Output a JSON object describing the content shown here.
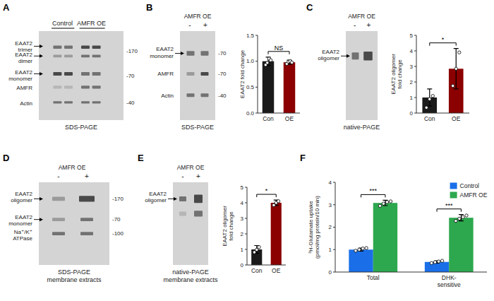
{
  "chart_data": [
    {
      "type": "gel",
      "title": "A",
      "annotations": [
        "EAAT2\ntrimer",
        "EAAT2\ndimer",
        "EAAT2\nmonomer",
        "AMFR",
        "Actin",
        "-170",
        "-70",
        "-40",
        "Control",
        "AMFR OE",
        "SDS-PAGE"
      ]
    },
    {
      "type": "gel",
      "title": "B",
      "annotations": [
        "EAAT2\nmonomer",
        "AMFR",
        "Actin",
        "-70",
        "-70",
        "-40",
        "AMFR OE",
        "-",
        "+",
        "SDS-PAGE"
      ]
    },
    {
      "type": "bar",
      "categories": [
        "Con",
        "OE"
      ],
      "values": [
        1.0,
        0.98
      ],
      "errors": [
        0.08,
        0.04
      ],
      "colors": [
        "#1a1a1a",
        "#8b0000"
      ],
      "points": [
        [
          0.93,
          0.97,
          1.05,
          1.02
        ],
        [
          0.95,
          0.99,
          1.0,
          0.975
        ]
      ],
      "ylabel": "EAAT2 fold change",
      "ylim": [
        0.0,
        1.5
      ],
      "yticks": [
        {
          "value": 0.0,
          "label": "0.0"
        },
        0.5,
        {
          "value": 1.0,
          "label": "1.0"
        },
        1.5
      ],
      "annotations": [
        "NS"
      ]
    },
    {
      "type": "gel",
      "title": "C",
      "annotations": [
        "EAAT2\noligomer",
        "AMFR OE",
        "-",
        "+",
        "native-PAGE"
      ]
    },
    {
      "type": "bar",
      "categories": [
        "Con",
        "OE"
      ],
      "values": [
        1.0,
        2.85
      ],
      "errors": [
        0.55,
        1.3
      ],
      "colors": [
        "#1a1a1a",
        "#8b0000"
      ],
      "points": [
        [
          0.35,
          0.9,
          1.1
        ],
        [
          1.75,
          2.85,
          3.9
        ]
      ],
      "ylabel": "EAAT2 oligomer\nfold change",
      "ylim": [
        0.0,
        5.0
      ],
      "yticks": [
        0,
        1,
        2,
        3,
        4,
        5
      ],
      "annotations": [
        "*"
      ]
    },
    {
      "type": "gel",
      "title": "D",
      "annotations": [
        "EAAT2\noligomer",
        "EAAT2\nmonomer",
        "Na⁺/K⁺\nATPase",
        "-170",
        "-70",
        "-100",
        "AMFR OE",
        "-",
        "+",
        "SDS-PAGE\nmembrane extracts"
      ]
    },
    {
      "type": "gel",
      "title": "E",
      "annotations": [
        "EAAT2\noligomer",
        "AMFR OE",
        "-",
        "+",
        "native-PAGE\nmembrane extracts"
      ]
    },
    {
      "type": "bar",
      "categories": [
        "Con",
        "OE"
      ],
      "values": [
        1.0,
        4.0
      ],
      "errors": [
        0.25,
        0.18
      ],
      "colors": [
        "#1a1a1a",
        "#8b0000"
      ],
      "points": [
        [
          0.82,
          0.98,
          1.15
        ],
        [
          3.85,
          4.0,
          4.1
        ]
      ],
      "ylabel": "EAAT2 oligomer\nfold change",
      "ylim": [
        0.0,
        5.0
      ],
      "yticks": [
        0,
        1,
        2,
        3,
        4,
        5
      ],
      "annotations": [
        "*"
      ]
    },
    {
      "type": "bar",
      "title": "F",
      "categories": [
        "Total",
        "DHK-\nsensitive"
      ],
      "series": [
        {
          "name": "Control",
          "color": "#1a6fe8",
          "values": [
            1.0,
            0.45
          ],
          "errors": [
            0.07,
            0.05
          ],
          "points": [
            [
              0.95,
              1.0,
              1.05,
              1.07
            ],
            [
              0.4,
              0.44,
              0.47,
              0.5
            ]
          ]
        },
        {
          "name": "AMFR OE",
          "color": "#2da84e",
          "values": [
            3.08,
            2.42
          ],
          "errors": [
            0.12,
            0.14
          ],
          "points": [
            [
              2.95,
              3.05,
              3.12,
              3.15
            ],
            [
              2.28,
              2.38,
              2.45,
              2.52
            ]
          ]
        }
      ],
      "ylabel": "³H-Glutamate uptake\n(pmol/mg protein/10 min)",
      "ylim": [
        0.0,
        4.0
      ],
      "yticks": [
        0,
        1,
        2,
        3,
        4
      ],
      "legend": "upper right",
      "annotations": [
        "***",
        "***"
      ]
    }
  ]
}
